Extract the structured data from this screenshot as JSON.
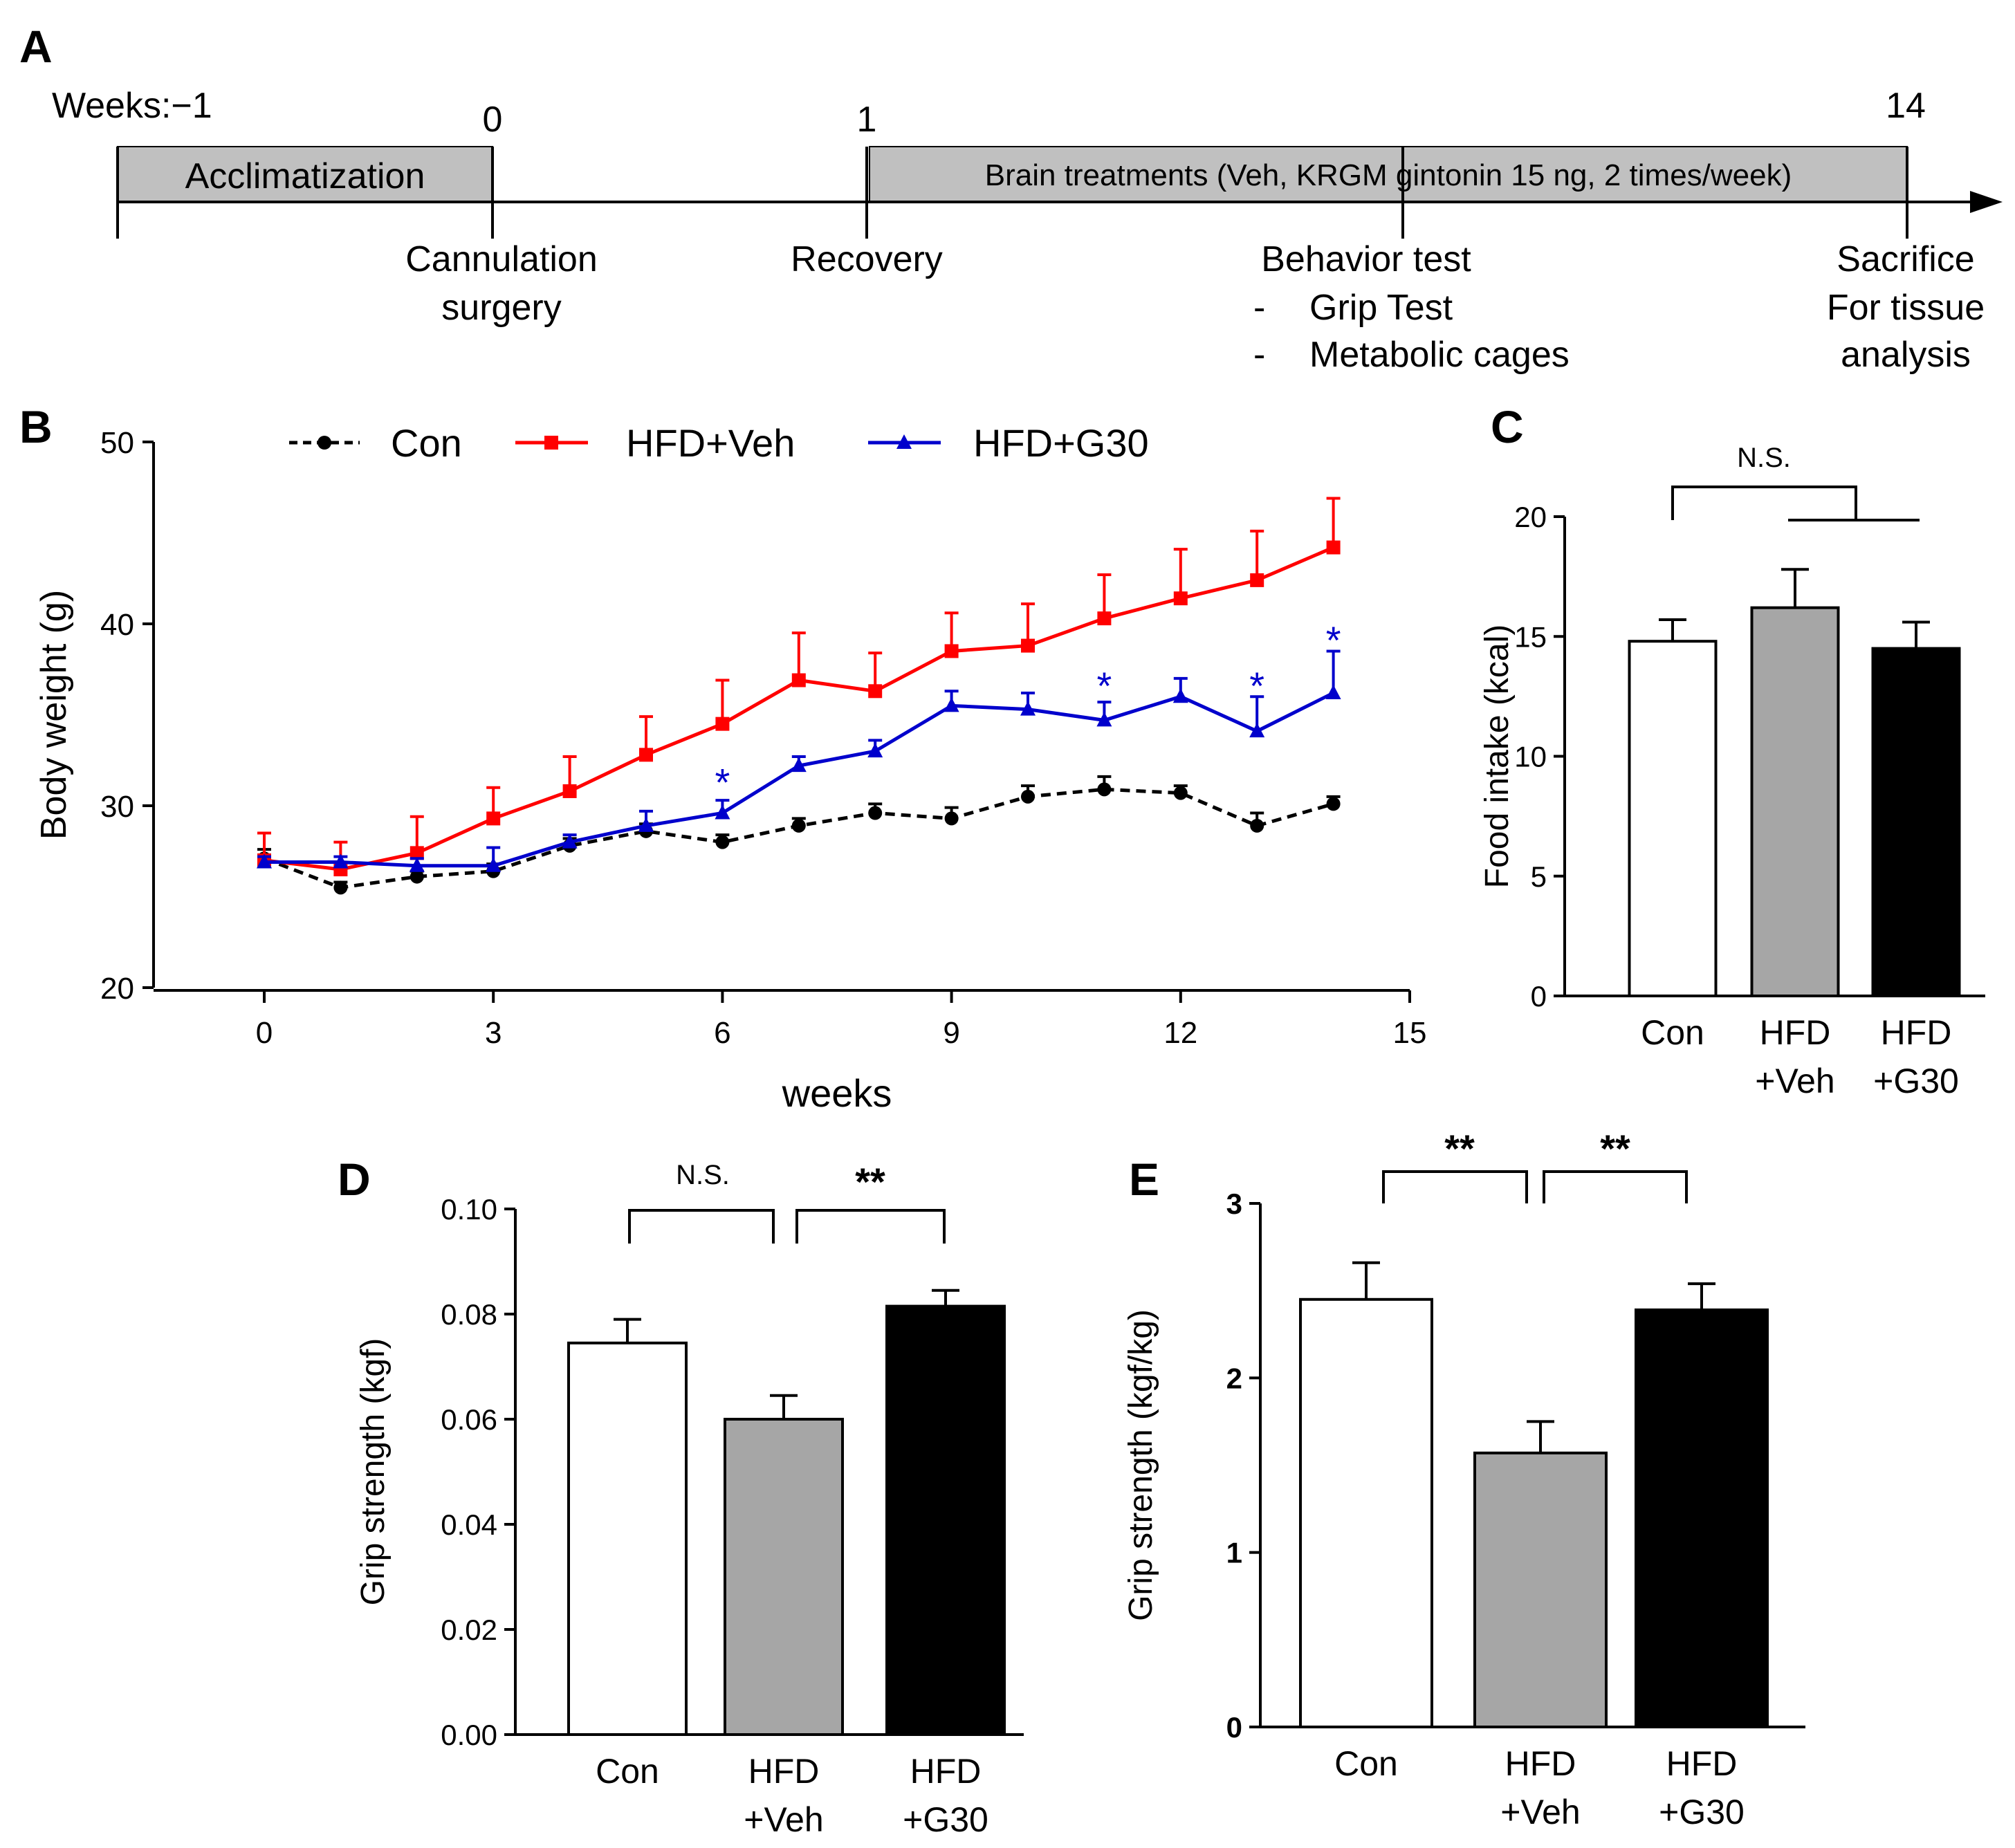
{
  "timeline": {
    "panel_label": "A",
    "weeks_label": "Weeks:−1",
    "ticks": [
      "0",
      "1",
      "14"
    ],
    "acclimatization_label": "Acclimatization",
    "treatment_label": "Brain treatments  (Veh, KRGM  gintonin  15 ng, 2 times/week)",
    "events": {
      "surgery": [
        "Cannulation",
        "surgery"
      ],
      "recovery": "Recovery",
      "behavior_title": "Behavior test",
      "behavior_dash": "-",
      "behavior_items": [
        "Grip Test",
        "Metabolic cages"
      ],
      "sacrifice": [
        "Sacrifice",
        "For tissue",
        "analysis"
      ]
    },
    "colors": {
      "bar_fill": "#c0c0c0"
    }
  },
  "chart_data": [
    {
      "panel": "B",
      "type": "line",
      "xlabel": "weeks",
      "ylabel": "Body weight (g)",
      "xlim": [
        -1,
        15
      ],
      "ylim": [
        20,
        50
      ],
      "xticks": [
        0,
        3,
        6,
        9,
        12,
        15
      ],
      "yticks": [
        20,
        30,
        40,
        50
      ],
      "x": [
        0,
        1,
        2,
        3,
        4,
        5,
        6,
        7,
        8,
        9,
        10,
        11,
        12,
        13,
        14
      ],
      "series": [
        {
          "name": "Con",
          "color": "#000000",
          "dashed": true,
          "marker": "circle",
          "values": [
            27.1,
            25.5,
            26.1,
            26.4,
            27.8,
            28.6,
            28.0,
            28.9,
            29.6,
            29.3,
            30.5,
            30.9,
            30.7,
            28.9,
            30.1
          ],
          "errors": [
            0.5,
            0.3,
            0.3,
            0.4,
            0.4,
            0.4,
            0.4,
            0.4,
            0.5,
            0.6,
            0.6,
            0.7,
            0.4,
            0.7,
            0.4
          ]
        },
        {
          "name": "HFD+Veh",
          "color": "#ff0000",
          "dashed": false,
          "marker": "square",
          "values": [
            27.0,
            26.5,
            27.4,
            29.3,
            30.8,
            32.8,
            34.5,
            36.9,
            36.3,
            38.5,
            38.8,
            40.3,
            41.4,
            42.4,
            44.2
          ],
          "errors": [
            1.5,
            1.5,
            2.0,
            1.7,
            1.9,
            2.1,
            2.4,
            2.6,
            2.1,
            2.1,
            2.3,
            2.4,
            2.7,
            2.7,
            2.7
          ]
        },
        {
          "name": "HFD+G30",
          "color": "#0000cc",
          "dashed": false,
          "marker": "triangle",
          "values": [
            26.9,
            26.9,
            26.7,
            26.7,
            28.0,
            28.9,
            29.6,
            32.2,
            33.0,
            35.5,
            35.3,
            34.7,
            36.0,
            34.1,
            36.2
          ],
          "errors": [
            0.3,
            0.3,
            0.4,
            1.0,
            0.4,
            0.8,
            0.7,
            0.5,
            0.6,
            0.8,
            0.9,
            1.0,
            1.0,
            1.9,
            2.3
          ]
        }
      ],
      "significance": [
        {
          "x": 6,
          "y": 31.7,
          "label": "*"
        },
        {
          "x": 11,
          "y": 37.0,
          "label": "*"
        },
        {
          "x": 13,
          "y": 37.0,
          "label": "*"
        },
        {
          "x": 14,
          "y": 39.5,
          "label": "*"
        }
      ]
    },
    {
      "panel": "C",
      "type": "bar",
      "ylabel": "Food intake (kcal)",
      "ylim": [
        0,
        20
      ],
      "yticks": [
        0,
        5,
        10,
        15,
        20
      ],
      "categories": [
        [
          "Con"
        ],
        [
          "HFD",
          "+Veh"
        ],
        [
          "HFD",
          "+G30"
        ]
      ],
      "values": [
        14.8,
        16.2,
        14.5
      ],
      "errors": [
        0.9,
        1.6,
        1.1
      ],
      "colors": [
        "#ffffff",
        "#a6a6a6",
        "#000000"
      ],
      "annotation": "N.S."
    },
    {
      "panel": "D",
      "type": "bar",
      "ylabel": "Grip strength (kgf)",
      "ylim": [
        0,
        0.1
      ],
      "yticks": [
        "0.00",
        "0.02",
        "0.04",
        "0.06",
        "0.08",
        "0.10"
      ],
      "categories": [
        [
          "Con"
        ],
        [
          "HFD",
          "+Veh"
        ],
        [
          "HFD",
          "+G30"
        ]
      ],
      "values": [
        0.0745,
        0.06,
        0.0815
      ],
      "errors": [
        0.0045,
        0.0045,
        0.003
      ],
      "colors": [
        "#ffffff",
        "#a6a6a6",
        "#000000"
      ],
      "annotations": [
        "N.S.",
        "**"
      ]
    },
    {
      "panel": "E",
      "type": "bar",
      "ylabel": "Grip strength (kgf/kg)",
      "ylim": [
        0,
        3
      ],
      "yticks": [
        "0",
        "1",
        "2",
        "3"
      ],
      "categories": [
        [
          "Con"
        ],
        [
          "HFD",
          "+Veh"
        ],
        [
          "HFD",
          "+G30"
        ]
      ],
      "values": [
        2.45,
        1.57,
        2.39
      ],
      "errors": [
        0.21,
        0.18,
        0.15
      ],
      "colors": [
        "#ffffff",
        "#a6a6a6",
        "#000000"
      ],
      "annotations": [
        "**",
        "**"
      ]
    }
  ]
}
